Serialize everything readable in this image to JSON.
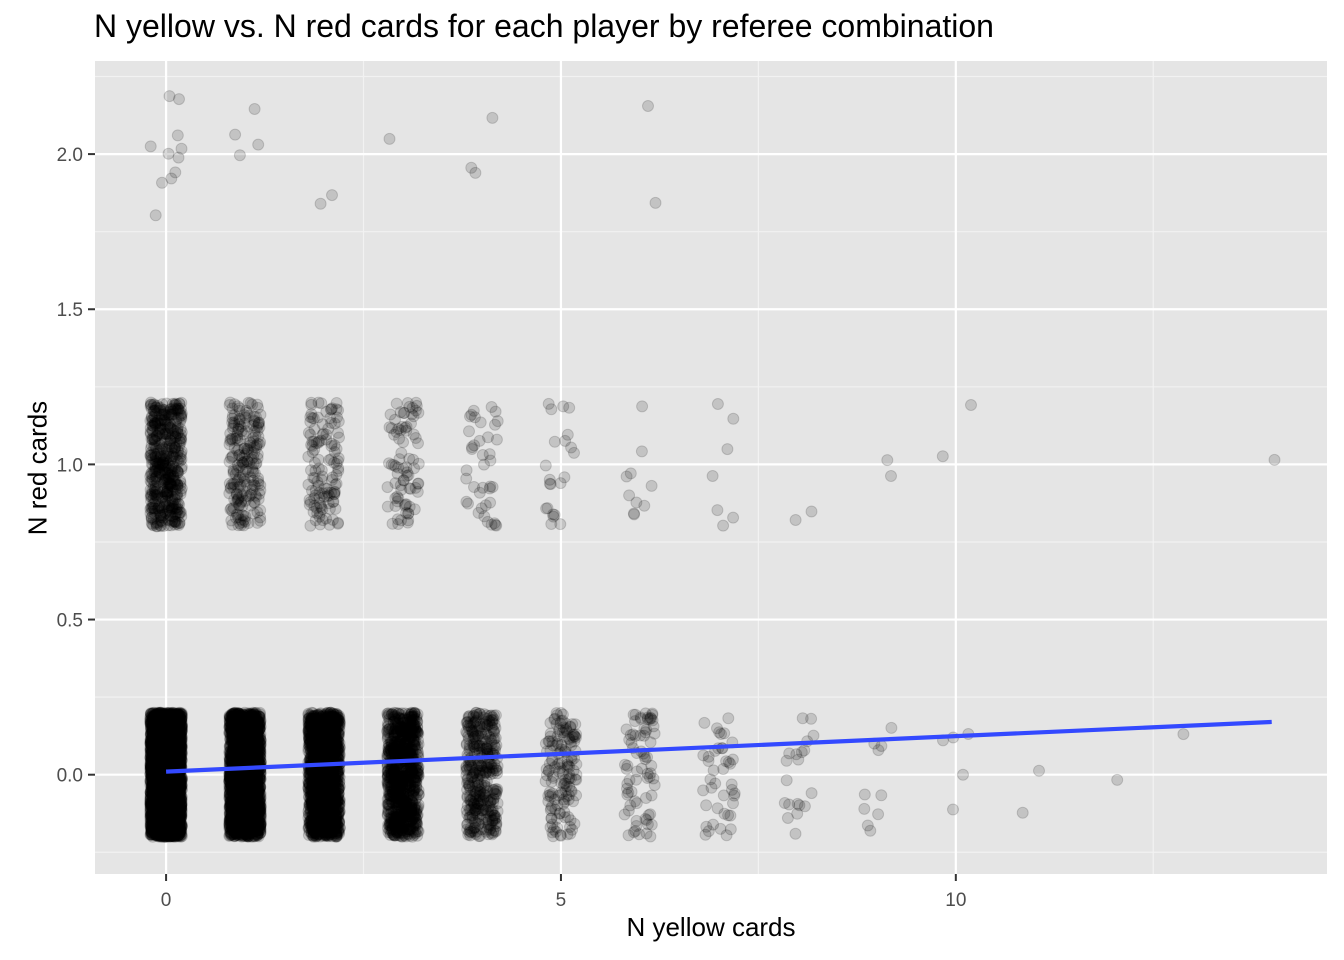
{
  "chart_data": {
    "type": "scatter",
    "title": "N yellow vs. N red cards for each player by referee combination",
    "xlabel": "N yellow cards",
    "ylabel": "N red cards",
    "xlim": [
      -0.9,
      14.7
    ],
    "ylim": [
      -0.32,
      2.3
    ],
    "x_ticks": [
      0,
      5,
      10
    ],
    "x_tick_labels": [
      "0",
      "5",
      "10"
    ],
    "y_ticks": [
      0.0,
      0.5,
      1.0,
      1.5,
      2.0
    ],
    "y_tick_labels": [
      "0.0",
      "0.5",
      "1.0",
      "1.5",
      "2.0"
    ],
    "grid": true,
    "background": "#e5e5e5",
    "point_color": "#000000",
    "point_alpha": 0.15,
    "jitter": {
      "x": 0.2,
      "y": 0.2
    },
    "points_groups": [
      {
        "y": 0,
        "counts": [
          4200,
          2600,
          1700,
          900,
          380,
          150,
          75,
          42,
          20,
          10,
          5,
          2,
          1,
          1
        ]
      },
      {
        "y": 1,
        "counts": [
          520,
          210,
          120,
          80,
          40,
          22,
          10,
          7,
          2,
          2,
          2,
          0,
          0,
          0,
          1
        ]
      },
      {
        "y": 2,
        "counts": [
          11,
          4,
          2,
          1,
          3,
          0,
          2
        ]
      }
    ],
    "trend_line": {
      "color": "#3349ff",
      "x": [
        0,
        14
      ],
      "y": [
        0.01,
        0.17
      ]
    }
  }
}
